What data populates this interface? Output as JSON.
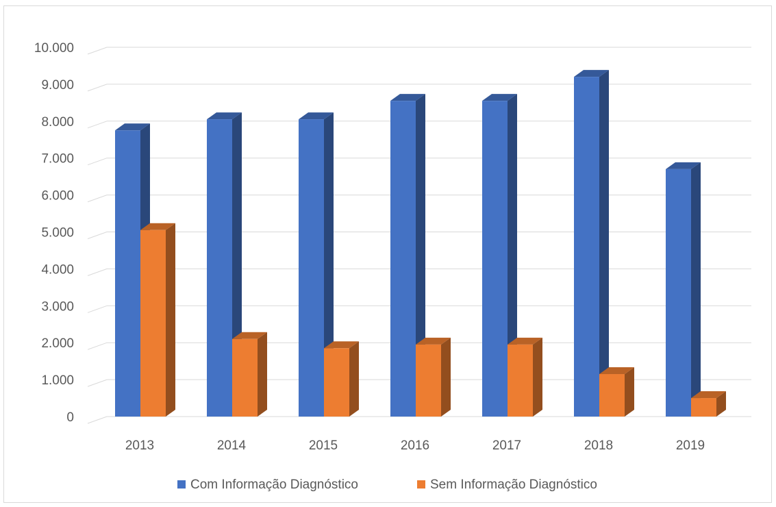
{
  "chart_data": {
    "type": "bar",
    "style": "3d-clustered-column",
    "categories": [
      "2013",
      "2014",
      "2015",
      "2016",
      "2017",
      "2018",
      "2019"
    ],
    "series": [
      {
        "name": "Com Informação Diagnóstico",
        "color": "#4472c4",
        "values": [
          7750,
          8050,
          8050,
          8550,
          8550,
          9200,
          6700
        ]
      },
      {
        "name": "Sem Informação Diagnóstico",
        "color": "#ed7d31",
        "values": [
          5050,
          2100,
          1850,
          1950,
          1950,
          1150,
          500
        ]
      }
    ],
    "y_ticks": [
      "0",
      "1.000",
      "2.000",
      "3.000",
      "4.000",
      "5.000",
      "6.000",
      "7.000",
      "8.000",
      "9.000",
      "10.000"
    ],
    "ylim": [
      0,
      10000
    ],
    "grid": true,
    "legend_position": "bottom"
  }
}
